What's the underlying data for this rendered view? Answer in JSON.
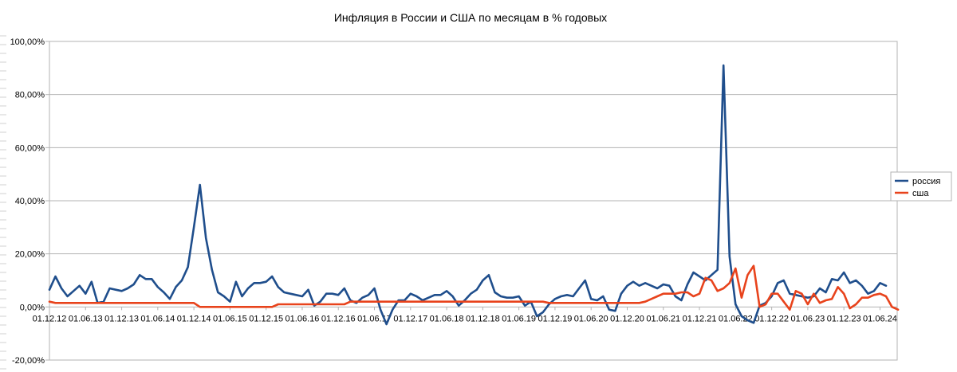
{
  "chart_data": {
    "type": "line",
    "title": "Инфляция в России и США по месяцам в % годовых",
    "xlabel": "",
    "ylabel": "",
    "ylim": [
      -20,
      100
    ],
    "yticks": [
      "-20,00%",
      "0,00%",
      "20,00%",
      "40,00%",
      "60,00%",
      "80,00%",
      "100,00%"
    ],
    "xticks": [
      {
        "i": 0,
        "label": "01.12.12"
      },
      {
        "i": 6,
        "label": "01.06.13"
      },
      {
        "i": 12,
        "label": "01.12.13"
      },
      {
        "i": 18,
        "label": "01.06.14"
      },
      {
        "i": 24,
        "label": "01.12.14"
      },
      {
        "i": 30,
        "label": "01.06.15"
      },
      {
        "i": 36,
        "label": "01.12.15"
      },
      {
        "i": 42,
        "label": "01.06.16"
      },
      {
        "i": 48,
        "label": "01.12.16"
      },
      {
        "i": 54,
        "label": "01.06.17"
      },
      {
        "i": 60,
        "label": "01.12.17"
      },
      {
        "i": 66,
        "label": "01.06.18"
      },
      {
        "i": 72,
        "label": "01.12.18"
      },
      {
        "i": 78,
        "label": "01.06.19"
      },
      {
        "i": 84,
        "label": "01.12.19"
      },
      {
        "i": 90,
        "label": "01.06.20"
      },
      {
        "i": 96,
        "label": "01.12.20"
      },
      {
        "i": 102,
        "label": "01.06.21"
      },
      {
        "i": 108,
        "label": "01.12.21"
      },
      {
        "i": 114,
        "label": "01.06.22"
      },
      {
        "i": 120,
        "label": "01.12.22"
      },
      {
        "i": 126,
        "label": "01.06.23"
      },
      {
        "i": 132,
        "label": "01.12.23"
      },
      {
        "i": 138,
        "label": "01.06.24"
      }
    ],
    "grid": true,
    "legend_position": "right",
    "series": [
      {
        "name": "россия",
        "color": "#1f4e8c",
        "values": [
          6.5,
          11.5,
          7,
          4,
          6,
          8,
          5,
          9.5,
          1.5,
          2,
          7,
          6.5,
          6,
          7,
          8.5,
          12,
          10.5,
          10.5,
          7.5,
          5.5,
          3,
          7.5,
          10,
          15,
          30,
          46,
          26,
          14,
          5.5,
          4,
          2,
          9.5,
          4,
          7,
          9,
          9,
          9.5,
          11.5,
          7.5,
          5.5,
          5,
          4.5,
          4,
          6.5,
          0.5,
          2,
          5,
          5,
          4.5,
          7,
          2.5,
          1.5,
          3.5,
          4.5,
          7,
          -1,
          -6.5,
          -1,
          2.5,
          2.5,
          5,
          4,
          2.5,
          3.5,
          4.5,
          4.5,
          6,
          4,
          0.5,
          2.5,
          5,
          6.5,
          10,
          12,
          5.5,
          4,
          3.5,
          3.5,
          4,
          0.5,
          2,
          -3.5,
          -2,
          1,
          3,
          4,
          4.5,
          4,
          7,
          10,
          3,
          2.5,
          4,
          -1,
          -1.5,
          5,
          8,
          9.5,
          8,
          9,
          8,
          7,
          8.5,
          8,
          4,
          2.5,
          8.5,
          13,
          11.5,
          10,
          12,
          14,
          91,
          19,
          1,
          -3.5,
          -5,
          -6,
          0.5,
          1.5,
          4,
          9,
          10,
          5,
          4.5,
          4,
          3.5,
          4,
          7,
          5.5,
          10.5,
          10,
          13,
          9,
          10,
          8,
          5,
          6,
          9,
          8
        ]
      },
      {
        "name": "сша",
        "color": "#e8431c",
        "values": [
          2,
          1.5,
          1.5,
          1.5,
          1.5,
          1.5,
          1.5,
          1.5,
          1.5,
          1.5,
          1.5,
          1.5,
          1.5,
          1.5,
          1.5,
          1.5,
          1.5,
          1.5,
          1.5,
          1.5,
          1.5,
          1.5,
          1.5,
          1.5,
          1.5,
          0,
          0,
          0,
          0,
          0,
          0,
          0,
          0,
          0,
          0,
          0,
          0,
          0,
          1,
          1,
          1,
          1,
          1,
          1,
          1,
          1,
          1,
          1,
          1,
          1,
          2,
          2,
          2,
          2,
          2,
          2,
          2,
          2,
          2,
          2,
          2,
          2,
          2,
          2,
          2,
          2,
          2,
          2,
          2,
          2,
          2,
          2,
          2,
          2,
          2,
          2,
          2,
          2,
          2,
          2,
          2,
          2,
          2,
          1.5,
          1.5,
          1.5,
          1.5,
          1.5,
          1.5,
          1.5,
          1.5,
          1.5,
          1.5,
          1.5,
          1.5,
          1.5,
          1.5,
          1.5,
          1.5,
          2,
          3,
          4,
          5,
          5,
          5,
          5.5,
          5.5,
          4,
          5,
          11,
          10,
          6,
          7,
          9,
          14.5,
          3.5,
          12,
          15.5,
          0,
          1,
          5,
          5,
          2,
          -1,
          6,
          5,
          1,
          5,
          1.5,
          2.5,
          3,
          7.5,
          5,
          -0.5,
          1,
          3.5,
          3.5,
          4.5,
          5,
          4,
          0,
          -1
        ]
      }
    ]
  }
}
